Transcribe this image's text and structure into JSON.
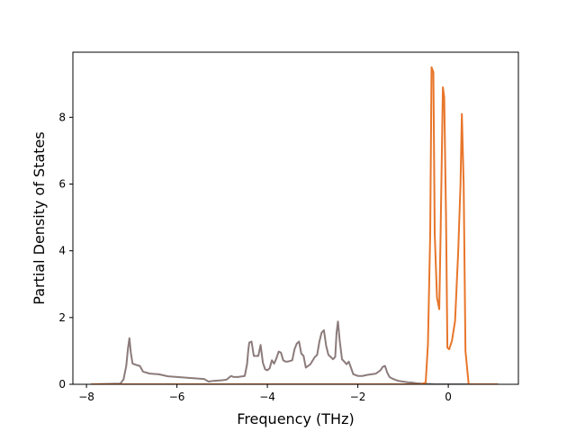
{
  "chart_data": {
    "type": "line",
    "title": "",
    "xlabel": "Frequency (THz)",
    "ylabel": "Partial Density of States",
    "xlim": [
      -8.3,
      1.55
    ],
    "ylim": [
      0,
      9.95
    ],
    "xticks": [
      -8,
      -6,
      -4,
      -2,
      0
    ],
    "xtick_labels": [
      "−8",
      "−6",
      "−4",
      "−2",
      "0"
    ],
    "yticks": [
      0,
      2,
      4,
      6,
      8
    ],
    "ytick_labels": [
      "0",
      "2",
      "4",
      "6",
      "8"
    ],
    "grid": false,
    "legend": "none",
    "series": [
      {
        "color": "#8c7b7b",
        "x": [
          -7.9,
          -7.25,
          -7.18,
          -7.12,
          -7.08,
          -7.05,
          -7.02,
          -6.98,
          -6.9,
          -6.82,
          -6.75,
          -6.6,
          -6.4,
          -6.2,
          -6.0,
          -5.8,
          -5.6,
          -5.4,
          -5.3,
          -5.2,
          -5.0,
          -4.9,
          -4.85,
          -4.8,
          -4.75,
          -4.65,
          -4.5,
          -4.45,
          -4.42,
          -4.4,
          -4.35,
          -4.3,
          -4.2,
          -4.15,
          -4.1,
          -4.05,
          -4.0,
          -3.95,
          -3.9,
          -3.85,
          -3.8,
          -3.75,
          -3.7,
          -3.65,
          -3.6,
          -3.55,
          -3.45,
          -3.4,
          -3.35,
          -3.3,
          -3.25,
          -3.2,
          -3.15,
          -3.05,
          -2.95,
          -2.9,
          -2.85,
          -2.8,
          -2.75,
          -2.7,
          -2.65,
          -2.6,
          -2.55,
          -2.5,
          -2.47,
          -2.44,
          -2.4,
          -2.35,
          -2.3,
          -2.25,
          -2.2,
          -2.1,
          -2.0,
          -1.9,
          -1.8,
          -1.7,
          -1.6,
          -1.5,
          -1.45,
          -1.4,
          -1.35,
          -1.3,
          -1.25,
          -1.2,
          -1.1,
          -1.0,
          -0.9,
          -0.8,
          -0.7,
          -0.6,
          -0.5,
          -0.4,
          -0.3,
          -0.2,
          -0.1,
          0.0,
          0.2,
          0.5,
          0.8,
          1.1
        ],
        "y": [
          0.0,
          0.02,
          0.15,
          0.55,
          1.1,
          1.38,
          0.95,
          0.62,
          0.58,
          0.55,
          0.38,
          0.32,
          0.3,
          0.24,
          0.22,
          0.2,
          0.18,
          0.16,
          0.08,
          0.1,
          0.12,
          0.14,
          0.2,
          0.25,
          0.22,
          0.22,
          0.25,
          0.6,
          1.05,
          1.25,
          1.28,
          0.85,
          0.85,
          1.18,
          0.65,
          0.45,
          0.42,
          0.48,
          0.72,
          0.62,
          0.78,
          0.98,
          0.95,
          0.72,
          0.68,
          0.68,
          0.72,
          1.05,
          1.22,
          1.28,
          0.92,
          0.85,
          0.5,
          0.6,
          0.82,
          0.88,
          1.28,
          1.55,
          1.62,
          1.15,
          0.88,
          0.82,
          0.75,
          0.82,
          1.55,
          1.88,
          1.3,
          0.75,
          0.68,
          0.6,
          0.68,
          0.3,
          0.25,
          0.25,
          0.28,
          0.3,
          0.32,
          0.42,
          0.52,
          0.55,
          0.35,
          0.22,
          0.18,
          0.15,
          0.1,
          0.08,
          0.06,
          0.05,
          0.03,
          0.02,
          0.01,
          0.01,
          0.0,
          0.0,
          0.0,
          0.0,
          0.0,
          0.0,
          0.0,
          0.0
        ]
      },
      {
        "color": "#e8762b",
        "x": [
          -7.9,
          -0.6,
          -0.5,
          -0.45,
          -0.4,
          -0.37,
          -0.33,
          -0.3,
          -0.25,
          -0.2,
          -0.17,
          -0.12,
          -0.09,
          -0.05,
          -0.02,
          0.02,
          0.08,
          0.15,
          0.22,
          0.27,
          0.3,
          0.34,
          0.38,
          0.45,
          1.1
        ],
        "y": [
          0.0,
          0.0,
          0.05,
          1.2,
          4.5,
          9.5,
          9.35,
          4.5,
          2.6,
          2.25,
          4.5,
          8.9,
          8.6,
          5.0,
          1.1,
          1.05,
          1.3,
          1.9,
          4.0,
          6.0,
          8.1,
          6.0,
          1.0,
          0.0,
          0.0
        ]
      }
    ]
  }
}
